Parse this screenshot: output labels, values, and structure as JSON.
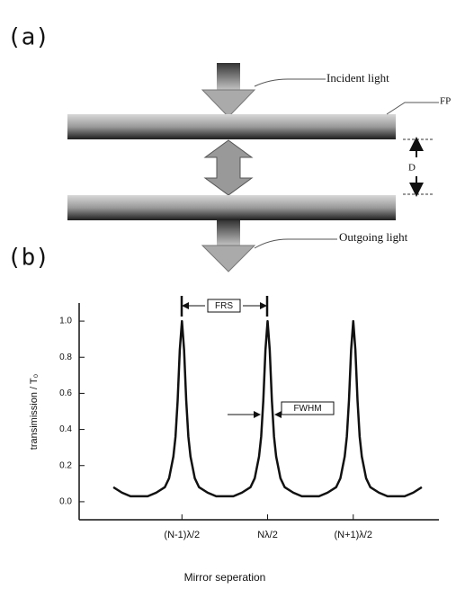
{
  "diagram": {
    "panel_a": "(a)",
    "incident_label": "Incident light",
    "mirror_label": "FP",
    "gap_label": "D",
    "outgoing_label": "Outgoing light"
  },
  "panel_b": "(b)",
  "chart_data": {
    "type": "line",
    "x_label": "Mirror seperation",
    "y_label": "transimission / T₀",
    "annotations": [
      "FRS",
      "FWHM"
    ],
    "x": [
      0.2,
      0.3,
      0.4,
      0.5,
      0.6,
      0.7,
      0.8,
      0.85,
      0.9,
      0.925,
      0.95,
      0.975,
      1,
      1.025,
      1.05,
      1.075,
      1.1,
      1.15,
      1.2,
      1.3,
      1.4,
      1.5,
      1.6,
      1.7,
      1.8,
      1.85,
      1.9,
      1.925,
      1.95,
      1.975,
      2,
      2.025,
      2.05,
      2.075,
      2.1,
      2.15,
      2.2,
      2.3,
      2.4,
      2.5,
      2.6,
      2.7,
      2.8,
      2.85,
      2.9,
      2.925,
      2.95,
      2.975,
      3,
      3.025,
      3.05,
      3.075,
      3.1,
      3.15,
      3.2,
      3.3,
      3.4,
      3.5,
      3.6,
      3.7,
      3.8
    ],
    "series": [
      {
        "color": "#111111",
        "values": [
          0.08,
          0.05,
          0.03,
          0.03,
          0.03,
          0.05,
          0.08,
          0.13,
          0.25,
          0.36,
          0.56,
          0.84,
          1,
          0.84,
          0.56,
          0.36,
          0.25,
          0.13,
          0.08,
          0.05,
          0.03,
          0.03,
          0.03,
          0.05,
          0.08,
          0.13,
          0.25,
          0.36,
          0.56,
          0.84,
          1,
          0.84,
          0.56,
          0.36,
          0.25,
          0.13,
          0.08,
          0.05,
          0.03,
          0.03,
          0.03,
          0.05,
          0.08,
          0.13,
          0.25,
          0.36,
          0.56,
          0.84,
          1,
          0.84,
          0.56,
          0.36,
          0.25,
          0.13,
          0.08,
          0.05,
          0.03,
          0.03,
          0.03,
          0.05,
          0.08
        ]
      }
    ],
    "xlim": [
      -0.2,
      4.0
    ],
    "xticks": [
      {
        "value": 1,
        "label": "(N-1)λ/2"
      },
      {
        "value": 2,
        "label": "Nλ/2"
      },
      {
        "value": 3,
        "label": "(N+1)λ/2"
      }
    ],
    "ylim": [
      -0.1,
      1.1
    ],
    "yticks": [
      {
        "value": 0,
        "label": "0.0"
      },
      0.2,
      0.4,
      0.6,
      0.8,
      {
        "value": 1,
        "label": "1.0"
      }
    ]
  }
}
